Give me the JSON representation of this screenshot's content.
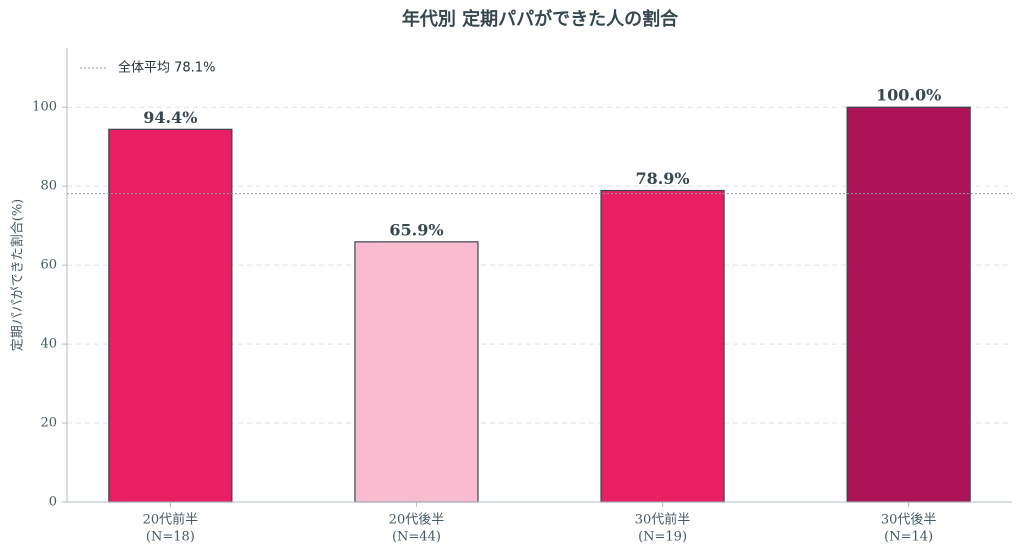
{
  "chart_data": {
    "type": "bar",
    "title": "年代別 定期パパができた人の割合",
    "ylabel": "定期パパができた割合(%)",
    "categories": [
      "20代前半",
      "20代後半",
      "30代前半",
      "30代後半"
    ],
    "sample_sizes": [
      "(N=18)",
      "(N=44)",
      "(N=19)",
      "(N=14)"
    ],
    "values": [
      94.4,
      65.9,
      78.9,
      100.0
    ],
    "value_labels": [
      "94.4%",
      "65.9%",
      "78.9%",
      "100.0%"
    ],
    "colors": [
      "#e91e63",
      "#f8bbd0",
      "#e91e63",
      "#ad1457"
    ],
    "reference_line": {
      "value": 78.1,
      "label": "全体平均 78.1%"
    },
    "ylim": [
      0,
      115
    ],
    "yticks": [
      0,
      20,
      40,
      60,
      80,
      100
    ],
    "grid": true
  }
}
